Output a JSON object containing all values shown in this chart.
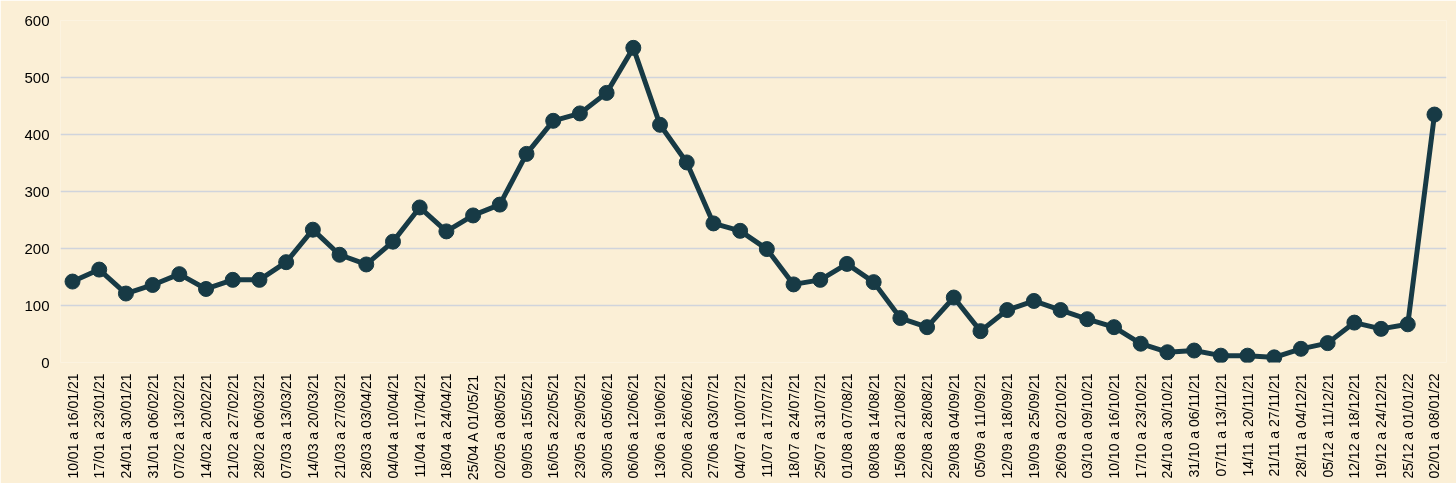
{
  "chart_data": {
    "type": "line",
    "categories": [
      "10/01 a 16/01/21",
      "17/01 a 23/01/21",
      "24/01 a 30/01/21",
      "31/01 a 06/02/21",
      "07/02 a 13/02/21",
      "14/02 a 20/02/21",
      "21/02 a 27/02/21",
      "28/02 a 06/03/21",
      "07/03 a 13/03/21",
      "14/03 a 20/03/21",
      "21/03 a 27/03/21",
      "28/03 a 03/04/21",
      "04/04 a 10/04/21",
      "11/04 a 17/04/21",
      "18/04 a 24/04/21",
      "25/04 A 01/05/21",
      "02/05 a 08/05/21",
      "09/05 a 15/05/21",
      "16/05 a 22/05/21",
      "23/05 a 29/05/21",
      "30/05 a 05/06/21",
      "06/06 a 12/06/21",
      "13/06 a 19/06/21",
      "20/06 a 26/06/21",
      "27/06 a 03/07/21",
      "04/07 a 10/07/21",
      "11/07 a 17/07/21",
      "18/07 a 24/07/21",
      "25/07 a 31/07/21",
      "01/08 a 07/08/21",
      "08/08 a 14/08/21",
      "15/08 a 21/08/21",
      "22/08 a 28/08/21",
      "29/08 a 04/09/21",
      "05/09 a 11/09/21",
      "12/09 a 18/09/21",
      "19/09 a 25/09/21",
      "26/09 a 02/10/21",
      "03/10 a 09/10/21",
      "10/10 a 16/10/21",
      "17/10 a 23/10/21",
      "24/10 a 30/10/21",
      "31/10 a 06/11/21",
      "07/11 a 13/11/21",
      "14/11 a 20/11/21",
      "21/11 a 27/11/21",
      "28/11 a 04/12/21",
      "05/12 a 11/12/21",
      "12/12 a 18/12/21",
      "19/12 a 24/12/21",
      "25/12 a 01/01/22",
      "02/01 a 08/01/22"
    ],
    "series": [
      {
        "color": "#173a45",
        "values": [
          142,
          163,
          121,
          136,
          155,
          129,
          145,
          145,
          176,
          233,
          189,
          172,
          212,
          272,
          230,
          258,
          277,
          366,
          424,
          437,
          473,
          552,
          417,
          351,
          244,
          231,
          199,
          137,
          145,
          173,
          141,
          78,
          62,
          114,
          55,
          92,
          108,
          92,
          76,
          62,
          33,
          18,
          21,
          12,
          12,
          9,
          24,
          34,
          70,
          59,
          67,
          435
        ]
      }
    ],
    "ylim": [
      0,
      600
    ],
    "yticks": [
      0,
      100,
      200,
      300,
      400,
      500,
      600
    ],
    "grid": "y",
    "marker": "circle",
    "line_style": "solid"
  }
}
